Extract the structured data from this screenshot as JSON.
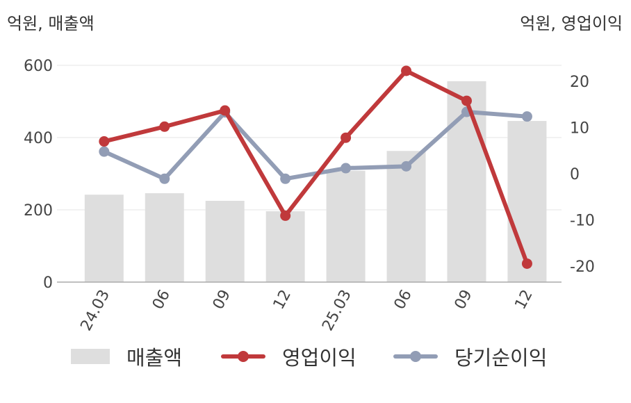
{
  "unit_left": "억원, 매출액",
  "unit_right": "억원, 영업이익",
  "legend": {
    "bar": "매출액",
    "line1": "영업이익",
    "line2": "당기순이익"
  },
  "colors": {
    "bar": "#dedede",
    "operating_profit": "#c0393b",
    "net_income": "#929db5",
    "grid": "#e6e6e6",
    "axis": "#aaaaaa",
    "text": "#444444"
  },
  "chart_data": {
    "type": "bar",
    "categories": [
      "24.03",
      "06",
      "09",
      "12",
      "25.03",
      "06",
      "09",
      "12"
    ],
    "y_left": {
      "ylim": [
        0,
        600
      ],
      "ticks": [
        "0",
        "200",
        "400",
        "600"
      ]
    },
    "y_right": {
      "ylim": [
        -23.5,
        23.5
      ],
      "ticks": [
        "-20",
        "-10",
        "0",
        "10",
        "20"
      ]
    },
    "grid": true,
    "legend_position": "bottom",
    "series": [
      {
        "name": "매출액",
        "type": "bar",
        "axis": "left",
        "values": [
          242,
          246,
          225,
          196,
          308,
          363,
          556,
          446
        ]
      },
      {
        "name": "영업이익",
        "type": "line",
        "axis": "right",
        "values": [
          7.0,
          10.2,
          13.7,
          -9.1,
          7.8,
          22.3,
          15.8,
          -19.5
        ]
      },
      {
        "name": "당기순이익",
        "type": "line",
        "axis": "right",
        "values": [
          4.8,
          -1.1,
          13.3,
          -1.1,
          1.2,
          1.6,
          13.4,
          12.4
        ]
      }
    ]
  }
}
